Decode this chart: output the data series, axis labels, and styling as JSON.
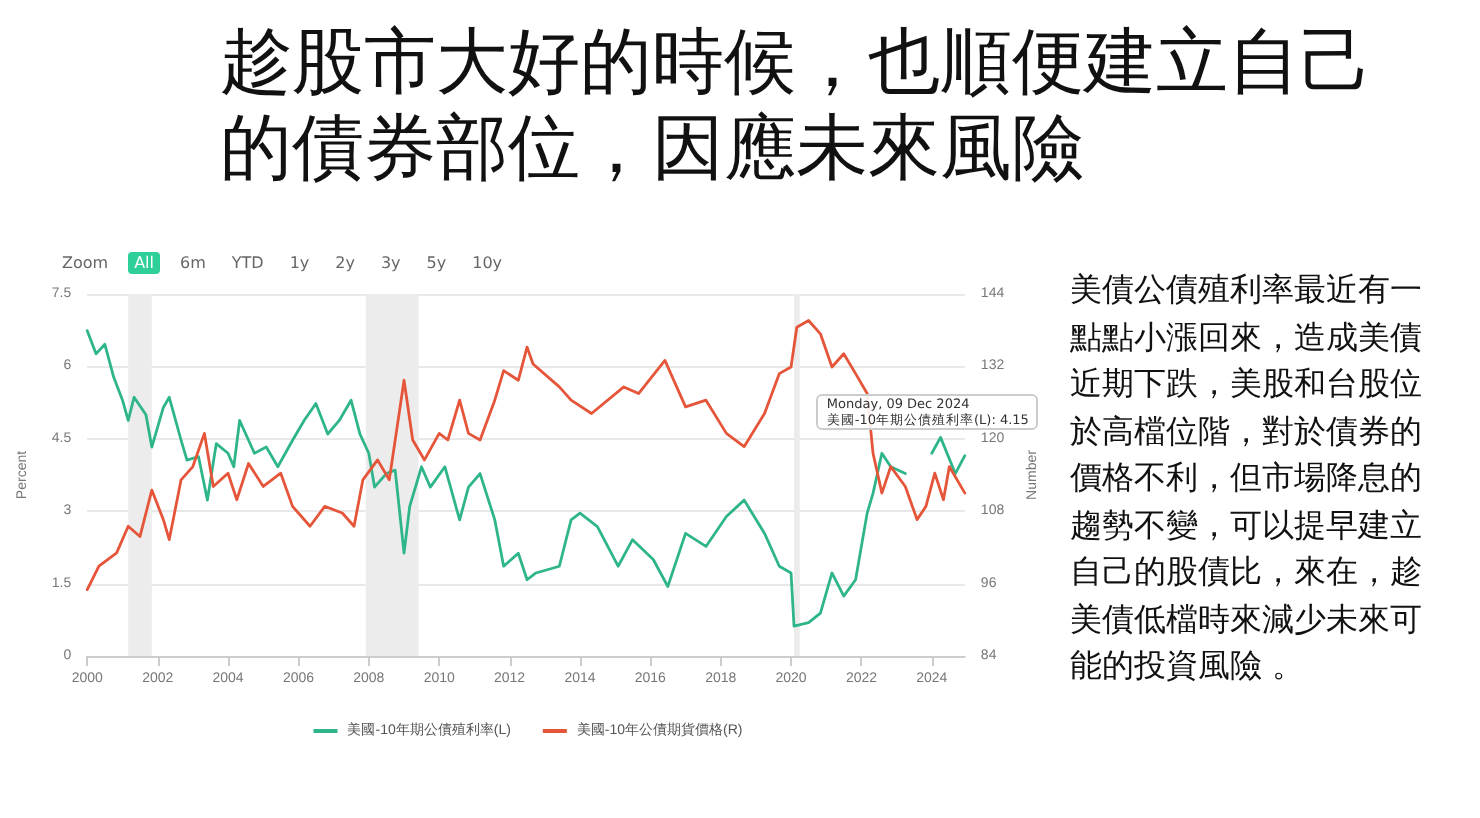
{
  "chart_data": {
    "type": "line",
    "title": "趁股市大好的時候，也順便建立自己的債券部位，因應未來風險",
    "ylabel": "Percent",
    "y2label": "Number",
    "xlim": [
      "2000-01-01",
      "2024-12-09"
    ],
    "xticks": [
      "2000",
      "2002",
      "2004",
      "2006",
      "2008",
      "2010",
      "2012",
      "2014",
      "2016",
      "2018",
      "2020",
      "2022",
      "2024"
    ],
    "ylim": [
      0,
      7.5
    ],
    "yticks": [
      0,
      1.5,
      3,
      4.5,
      6,
      7.5
    ],
    "y2lim": [
      84,
      144
    ],
    "y2ticks": [
      84,
      96,
      108,
      120,
      132,
      144
    ],
    "grid": "y",
    "legend": "bottom",
    "marker": "none",
    "line_style": "solid",
    "bands": [
      {
        "axis": "x",
        "from": "2001-03",
        "to": "2001-11",
        "color": "#ececec"
      },
      {
        "axis": "x",
        "from": "2007-12",
        "to": "2009-06",
        "color": "#ececec"
      },
      {
        "axis": "x",
        "from": "2020-02",
        "to": "2020-04",
        "color": "#ececec"
      }
    ],
    "annotations": [
      "美債公債殖利率最近有一點點小漲回來，造成美債近期下跌，美股和台股位於高檔位階，對於債券的價格不利，但市場降息的趨勢不變，可以提早建立自己的股債比，來在，趁美債低檔時來減少未來可能的投資風險 。",
      "Zoom",
      "All",
      "6m",
      "YTD",
      "1y",
      "2y",
      "3y",
      "5y",
      "10y",
      {
        "text": "Monday, 09 Dec 2024\n美國-10年期公債殖利率(L): 4.15",
        "x": "2024-12-09",
        "y": 4.15
      }
    ],
    "series": [
      {
        "name": "美國-10年期公債殖利率(L)",
        "color": "#2fb58b",
        "x": [
          "2000-01",
          "2000-04",
          "2000-07",
          "2000-10",
          "2001-01",
          "2001-03",
          "2001-05",
          "2001-09",
          "2001-11",
          "2002-03",
          "2002-05",
          "2002-09",
          "2002-11",
          "2003-03",
          "2003-06",
          "2003-09",
          "2004-01",
          "2004-03",
          "2004-05",
          "2004-10",
          "2005-02",
          "2005-06",
          "2005-11",
          "2006-03",
          "2006-07",
          "2006-11",
          "2007-03",
          "2007-07",
          "2007-10",
          "2008-01",
          "2008-03",
          "2008-07",
          "2008-10",
          "2009-01",
          "2009-03",
          "2009-07",
          "2009-10",
          "2010-03",
          "2010-08",
          "2010-11",
          "2011-03",
          "2011-08",
          "2011-11",
          "2012-04",
          "2012-07",
          "2012-10",
          "2013-06",
          "2013-10",
          "2014-01",
          "2014-07",
          "2015-02",
          "2015-07",
          "2016-02",
          "2016-07",
          "2017-01",
          "2017-08",
          "2018-03",
          "2018-09",
          "2019-04",
          "2019-09",
          "2020-01",
          "2020-02",
          "2020-07",
          "2020-11",
          "2021-03",
          "2021-07",
          "2021-11",
          "2022-03",
          "2022-05",
          "2022-08",
          "2022-11",
          "2023-04",
          "2023-08",
          "2023-10",
          "2024-01",
          "2024-04",
          "2024-09",
          "2024-12-09"
        ],
        "values": [
          6.74,
          6.26,
          6.46,
          5.78,
          5.3,
          4.88,
          5.36,
          5.0,
          4.33,
          5.15,
          5.36,
          4.47,
          4.06,
          4.13,
          3.23,
          4.4,
          4.2,
          3.92,
          4.88,
          4.2,
          4.33,
          3.92,
          4.47,
          4.88,
          5.23,
          4.6,
          4.88,
          5.3,
          4.6,
          4.2,
          3.5,
          3.78,
          3.85,
          2.13,
          3.1,
          3.92,
          3.5,
          3.92,
          2.82,
          3.5,
          3.78,
          2.82,
          1.86,
          2.13,
          1.58,
          1.72,
          1.86,
          2.82,
          2.96,
          2.68,
          1.86,
          2.41,
          2.0,
          1.44,
          2.54,
          2.27,
          2.89,
          3.23,
          2.54,
          1.86,
          1.72,
          0.62,
          0.69,
          0.89,
          1.72,
          1.24,
          1.58,
          2.96,
          3.37,
          4.2,
          3.92,
          3.78,
          null,
          null,
          4.2,
          4.53,
          3.78,
          4.15
        ]
      },
      {
        "name": "美國-10年公債期貨價格(R)",
        "color": "#e5553a",
        "axis": "y2",
        "x": [
          "2000-01",
          "2000-05",
          "2000-11",
          "2001-03",
          "2001-07",
          "2001-11",
          "2002-03",
          "2002-05",
          "2002-09",
          "2003-01",
          "2003-05",
          "2003-08",
          "2004-01",
          "2004-04",
          "2004-08",
          "2005-01",
          "2005-07",
          "2005-11",
          "2006-05",
          "2006-10",
          "2007-04",
          "2007-08",
          "2007-11",
          "2008-04",
          "2008-08",
          "2008-11",
          "2009-01",
          "2009-04",
          "2009-08",
          "2010-01",
          "2010-04",
          "2010-08",
          "2010-11",
          "2011-03",
          "2011-08",
          "2011-11",
          "2012-04",
          "2012-07",
          "2012-09",
          "2013-06",
          "2013-10",
          "2014-05",
          "2015-04",
          "2015-09",
          "2016-06",
          "2017-01",
          "2017-08",
          "2018-03",
          "2018-09",
          "2019-04",
          "2019-09",
          "2020-01",
          "2020-03",
          "2020-07",
          "2020-11",
          "2021-03",
          "2021-07",
          "2021-11",
          "2022-03",
          "2022-05",
          "2022-08",
          "2022-11",
          "2023-04",
          "2023-08",
          "2023-11",
          "2024-02",
          "2024-05",
          "2024-07",
          "2024-12-09"
        ],
        "values": [
          95.0,
          98.9,
          101.1,
          105.5,
          103.8,
          111.5,
          106.6,
          103.3,
          113.2,
          115.4,
          120.9,
          112.1,
          114.3,
          109.9,
          115.9,
          112.1,
          114.3,
          108.8,
          105.5,
          108.8,
          107.7,
          105.5,
          113.2,
          116.5,
          113.2,
          123.1,
          129.7,
          119.8,
          116.5,
          120.9,
          119.8,
          126.4,
          120.9,
          119.8,
          126.4,
          131.3,
          129.7,
          135.2,
          132.4,
          128.6,
          126.4,
          124.2,
          128.6,
          127.5,
          133.0,
          125.3,
          126.4,
          120.9,
          118.7,
          124.2,
          130.8,
          131.9,
          138.5,
          139.6,
          137.4,
          131.9,
          134.1,
          130.8,
          127.5,
          117.6,
          111.0,
          115.4,
          112.1,
          106.6,
          108.8,
          114.3,
          109.9,
          115.4,
          111.0
        ]
      }
    ]
  }
}
